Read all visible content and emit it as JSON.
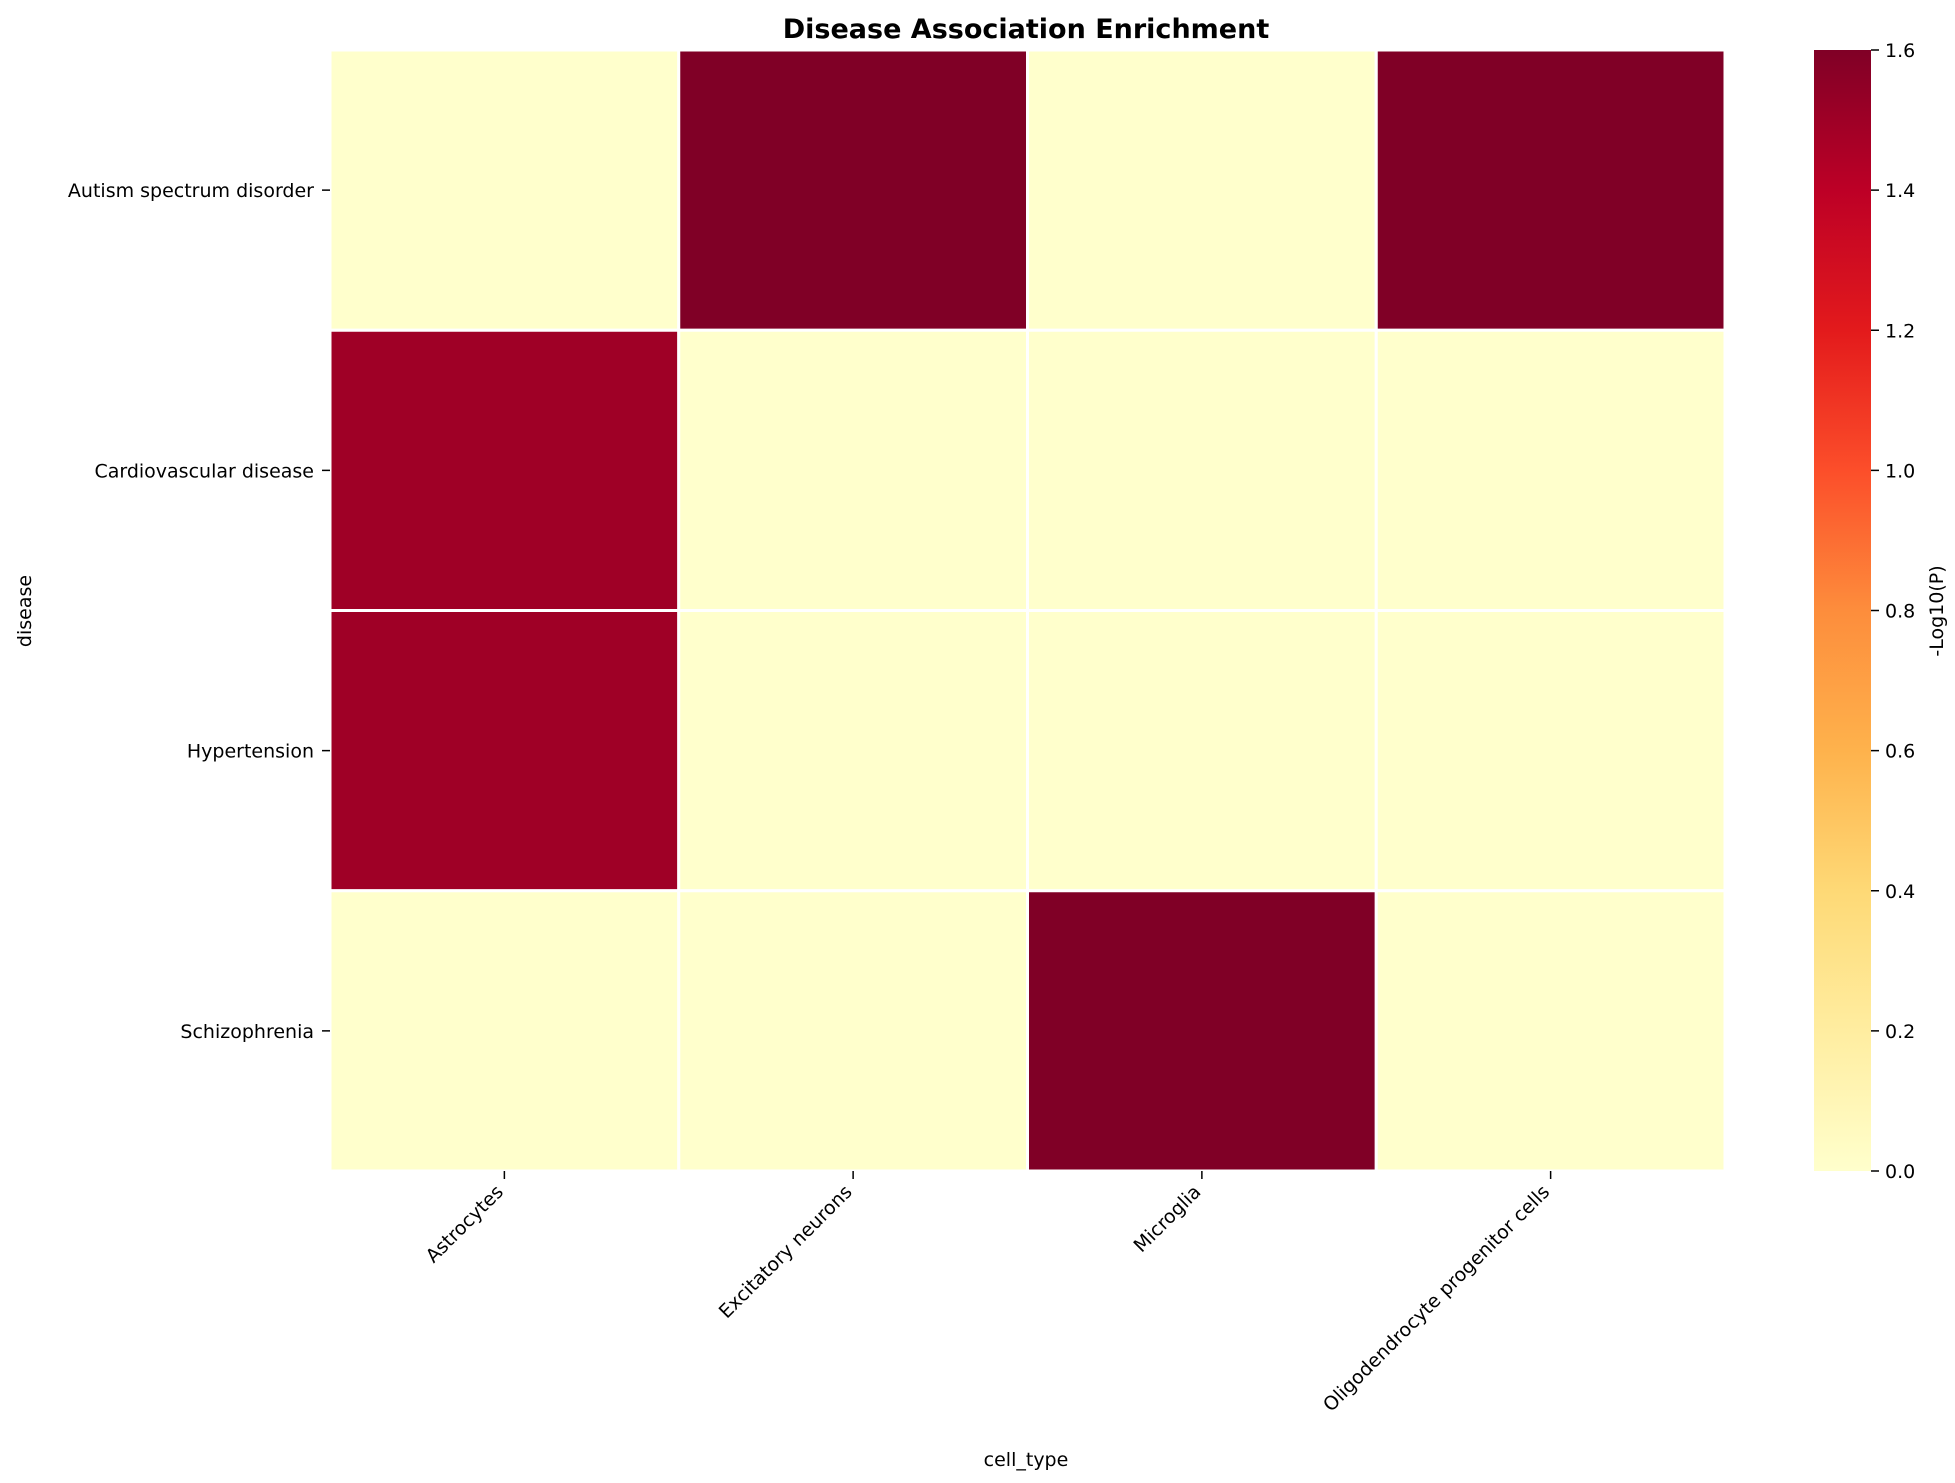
{
  "chart_data": {
    "type": "heatmap",
    "title": "Disease Association Enrichment",
    "xlabel": "cell_type",
    "ylabel": "disease",
    "x_categories": [
      "Astrocytes",
      "Excitatory neurons",
      "Microglia",
      "Oligodendrocyte progenitor cells"
    ],
    "y_categories": [
      "Autism spectrum disorder",
      "Cardiovascular disease",
      "Hypertension",
      "Schizophrenia"
    ],
    "values": [
      [
        0.0,
        1.6,
        0.0,
        1.6
      ],
      [
        1.5,
        0.0,
        0.0,
        0.0
      ],
      [
        1.5,
        0.0,
        0.0,
        0.0
      ],
      [
        0.0,
        0.0,
        1.6,
        0.0
      ]
    ],
    "colorbar": {
      "label": "-Log10(P)",
      "min": 0.0,
      "max": 1.6,
      "ticks": [
        "0.0",
        "0.2",
        "0.4",
        "0.6",
        "0.8",
        "1.0",
        "1.2",
        "1.4",
        "1.6"
      ],
      "colormap": "YlOrRd",
      "colors": [
        "#ffffcc",
        "#ffeda0",
        "#fed976",
        "#feb24c",
        "#fd8d3c",
        "#fc4e2a",
        "#e31a1c",
        "#bd0026",
        "#800026"
      ]
    },
    "grid": false,
    "cell_border_color": "#ffffff"
  }
}
